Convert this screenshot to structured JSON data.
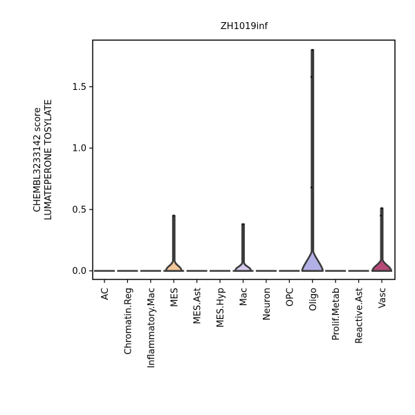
{
  "chart_data": {
    "type": "violin",
    "title": "ZH1019inf",
    "ylabel_lines": [
      "CHEMBL3233142 score",
      "LUMATEPERONE TOSYLATE"
    ],
    "xlabel": "",
    "ylim": [
      -0.07,
      1.88
    ],
    "yticks": [
      0.0,
      0.5,
      1.0,
      1.5
    ],
    "ytick_labels": [
      "0.0",
      "0.5",
      "1.0",
      "1.5"
    ],
    "grid": false,
    "categories": [
      "AC",
      "Chromatin.Reg",
      "Inflammatory.Mac",
      "MES",
      "MES.Ast",
      "MES.Hyp",
      "Mac",
      "Neuron",
      "OPC",
      "Oligo",
      "Prolif.Metab",
      "Reactive.Ast",
      "Vasc"
    ],
    "violins": [
      {
        "category": "AC",
        "max": 0.0,
        "bulge": 0.0,
        "color": "#e8e8e8"
      },
      {
        "category": "Chromatin.Reg",
        "max": 0.0,
        "bulge": 0.0,
        "color": "#e8e8e8"
      },
      {
        "category": "Inflammatory.Mac",
        "max": 0.0,
        "bulge": 0.0,
        "color": "#e8e8e8"
      },
      {
        "category": "MES",
        "max": 0.45,
        "bulge": 0.75,
        "color": "#f3c79a",
        "points": [
          0.45
        ]
      },
      {
        "category": "MES.Ast",
        "max": 0.0,
        "bulge": 0.0,
        "color": "#e8e8e8"
      },
      {
        "category": "MES.Hyp",
        "max": 0.0,
        "bulge": 0.0,
        "color": "#e8e8e8"
      },
      {
        "category": "Mac",
        "max": 0.38,
        "bulge": 0.75,
        "color": "#d6c9ef",
        "points": [
          0.38
        ]
      },
      {
        "category": "Neuron",
        "max": 0.0,
        "bulge": 0.0,
        "color": "#e8e8e8"
      },
      {
        "category": "OPC",
        "max": 0.0,
        "bulge": 0.0,
        "color": "#e8e8e8"
      },
      {
        "category": "Oligo",
        "max": 1.8,
        "bulge": 1.0,
        "color": "#b3b0e6",
        "points": [
          1.8,
          1.58,
          0.68
        ]
      },
      {
        "category": "Prolif.Metab",
        "max": 0.0,
        "bulge": 0.0,
        "color": "#e8e8e8"
      },
      {
        "category": "Reactive.Ast",
        "max": 0.0,
        "bulge": 0.0,
        "color": "#e8e8e8"
      },
      {
        "category": "Vasc",
        "max": 0.51,
        "bulge": 0.9,
        "color": "#b84a7a",
        "points": [
          0.51,
          0.45
        ]
      }
    ]
  }
}
